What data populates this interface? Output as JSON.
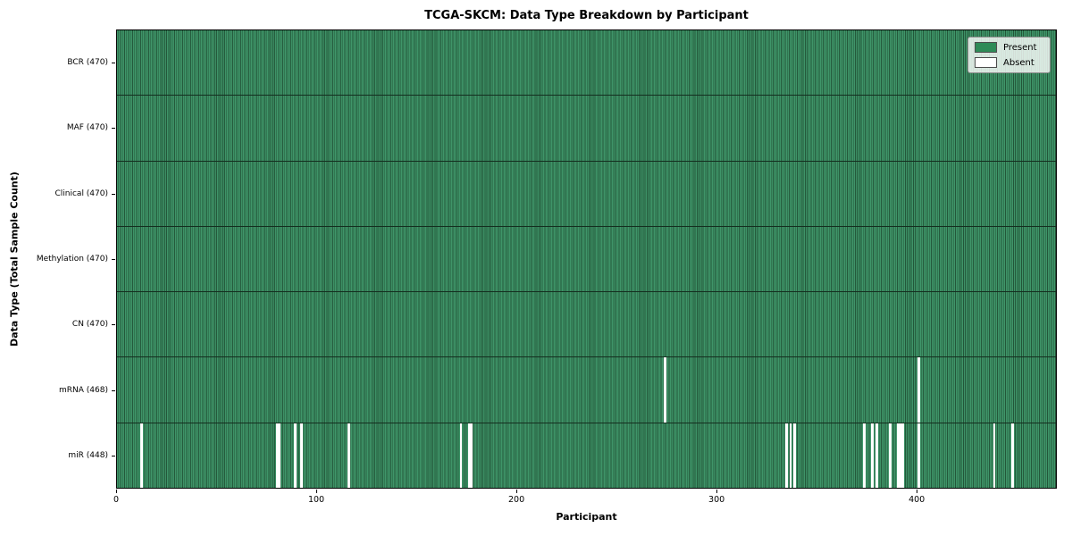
{
  "chart_data": {
    "type": "heatmap",
    "title": "TCGA-SKCM: Data Type Breakdown by Participant",
    "xlabel": "Participant",
    "ylabel": "Data Type (Total Sample Count)",
    "n_participants": 470,
    "x_ticks": [
      0,
      100,
      200,
      300,
      400
    ],
    "legend_position": "upper right",
    "grid": false,
    "colors": {
      "present": "#2e8b57",
      "present_stripe_light": "#3f9569",
      "present_stripe_dark": "#235639",
      "absent": "#ffffff"
    },
    "legend": [
      {
        "label": "Present",
        "color": "#2e8b57"
      },
      {
        "label": "Absent",
        "color": "#ffffff"
      }
    ],
    "rows": [
      {
        "label": "BCR (470)",
        "present_count": 470,
        "absent_participants": []
      },
      {
        "label": "MAF (470)",
        "present_count": 470,
        "absent_participants": []
      },
      {
        "label": "Clinical (470)",
        "present_count": 470,
        "absent_participants": []
      },
      {
        "label": "Methylation (470)",
        "present_count": 470,
        "absent_participants": []
      },
      {
        "label": "CN (470)",
        "present_count": 470,
        "absent_participants": []
      },
      {
        "label": "mRNA (468)",
        "present_count": 468,
        "absent_participants": [
          274,
          401
        ]
      },
      {
        "label": "miR (448)",
        "present_count": 448,
        "absent_participants": [
          12,
          80,
          81,
          89,
          92,
          116,
          172,
          176,
          177,
          335,
          337,
          339,
          374,
          378,
          380,
          387,
          391,
          392,
          393,
          401,
          439,
          448
        ]
      }
    ]
  }
}
